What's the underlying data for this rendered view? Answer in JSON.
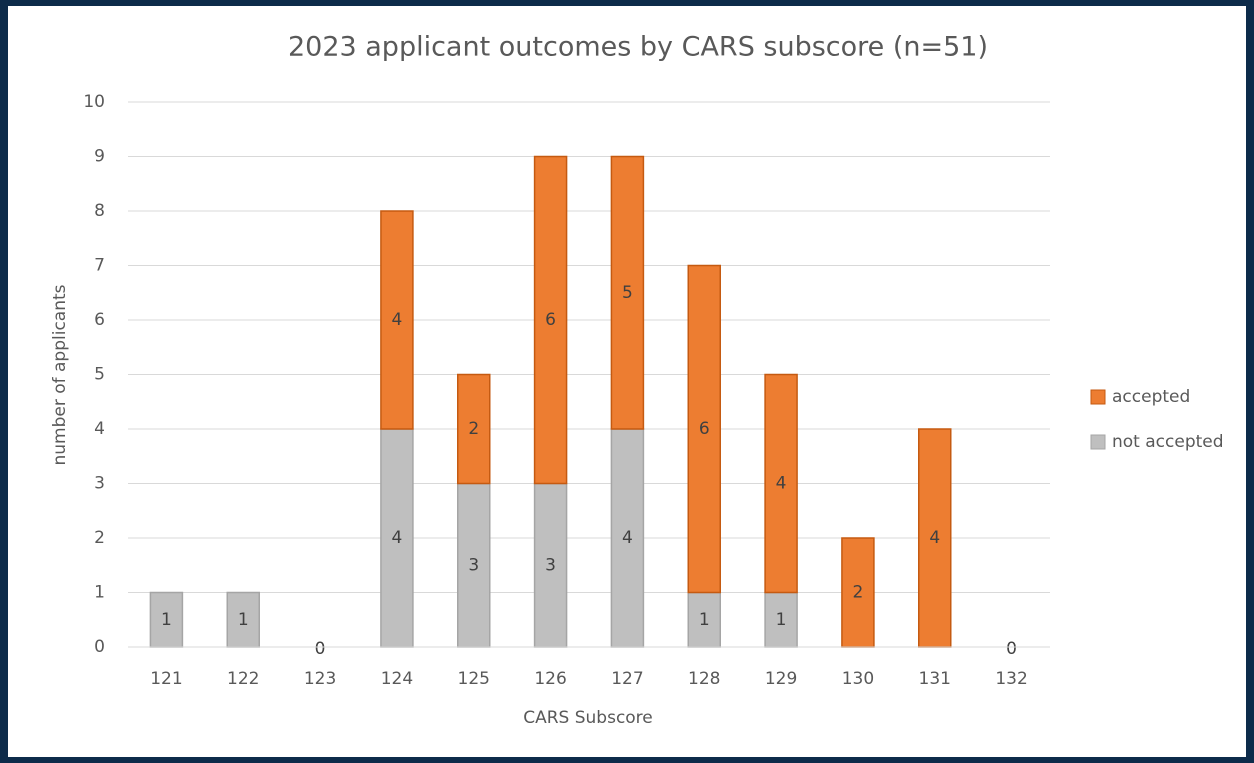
{
  "chart_data": {
    "type": "stacked-bar",
    "title": "2023 applicant outcomes by CARS subscore (n=51)",
    "x_label": "CARS Subscore",
    "y_label": "number of applicants",
    "categories": [
      "121",
      "122",
      "123",
      "124",
      "125",
      "126",
      "127",
      "128",
      "129",
      "130",
      "131",
      "132"
    ],
    "series": [
      {
        "name": "not accepted",
        "color": "#bfbfbf",
        "values": [
          1,
          1,
          0,
          4,
          3,
          3,
          4,
          1,
          1,
          0,
          0,
          0
        ]
      },
      {
        "name": "accepted",
        "color": "#ed7d31",
        "values": [
          0,
          0,
          0,
          4,
          2,
          6,
          5,
          6,
          4,
          2,
          4,
          0
        ]
      }
    ],
    "ylim": [
      0,
      10
    ],
    "yticks": [
      0,
      1,
      2,
      3,
      4,
      5,
      6,
      7,
      8,
      9,
      10
    ],
    "grid": true,
    "legend": "right"
  }
}
